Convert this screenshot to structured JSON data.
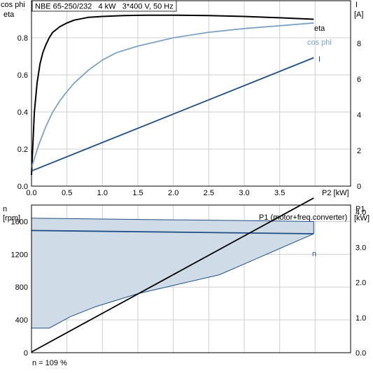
{
  "chart_data": [
    {
      "type": "line",
      "title": "NBE 65-250/232   4 kW   3*400 V, 50 Hz",
      "xlabel": "P2 [kW]",
      "ylabel_left": [
        "cos phi",
        "eta"
      ],
      "ylabel_right": [
        "I",
        "[A]"
      ],
      "xlim": [
        0,
        4.5
      ],
      "ylim_left": [
        0,
        1.0
      ],
      "ylim_right": [
        0,
        10.4
      ],
      "x_ticks": [
        "0.0",
        "0.5",
        "1.0",
        "1.5",
        "2.0",
        "2.5",
        "3.0",
        "3.5"
      ],
      "y_left_ticks": [
        "0.0",
        "0.2",
        "0.4",
        "0.6",
        "0.8"
      ],
      "y_right_ticks": [
        "0",
        "2",
        "4",
        "6",
        "8"
      ],
      "grid": true,
      "series": [
        {
          "name": "eta",
          "axis": "left",
          "color": "#000000",
          "x": [
            0,
            0.04,
            0.08,
            0.12,
            0.16,
            0.2,
            0.25,
            0.3,
            0.4,
            0.5,
            0.6,
            0.8,
            1.0,
            1.3,
            1.6,
            2.0,
            2.5,
            3.0,
            3.5,
            3.98
          ],
          "y": [
            0.06,
            0.4,
            0.56,
            0.66,
            0.72,
            0.76,
            0.8,
            0.83,
            0.86,
            0.88,
            0.895,
            0.91,
            0.915,
            0.92,
            0.922,
            0.922,
            0.92,
            0.915,
            0.908,
            0.9
          ]
        },
        {
          "name": "cos phi",
          "axis": "left",
          "color": "#7ba3c6",
          "x": [
            0,
            0.1,
            0.2,
            0.3,
            0.4,
            0.5,
            0.6,
            0.8,
            1.0,
            1.2,
            1.5,
            2.0,
            2.5,
            3.0,
            3.5,
            3.98
          ],
          "y": [
            0.1,
            0.22,
            0.32,
            0.4,
            0.46,
            0.51,
            0.555,
            0.625,
            0.68,
            0.72,
            0.755,
            0.8,
            0.83,
            0.85,
            0.865,
            0.88
          ]
        },
        {
          "name": "I",
          "axis": "right",
          "color": "#1f4e85",
          "x": [
            0,
            3.98
          ],
          "y": [
            0.85,
            7.2
          ]
        }
      ]
    },
    {
      "type": "area",
      "ylabel_left": [
        "n",
        "[rpm]"
      ],
      "ylabel_right": [
        "P1",
        "[kW]"
      ],
      "xlim": [
        0,
        4.5
      ],
      "ylim_left": [
        0,
        1800
      ],
      "ylim_right": [
        0,
        4.2
      ],
      "y_left_ticks": [
        "0",
        "400",
        "800",
        "1200",
        "1600"
      ],
      "y_right_ticks": [
        "0.0",
        "1.0",
        "2.0",
        "3.0",
        "4.0"
      ],
      "grid": true,
      "series": [
        {
          "name": "n",
          "axis": "left",
          "color": "#1f4e85",
          "x": [
            0,
            3.98
          ],
          "y": [
            1490,
            1450
          ]
        },
        {
          "name": "n (range)",
          "axis": "left",
          "color": "#1f4e85",
          "upper_x": [
            0,
            3.98
          ],
          "upper_y": [
            1640,
            1600
          ],
          "lower_x": [
            0,
            0.25,
            0.55,
            0.9,
            1.5,
            2.0,
            2.65,
            3.98
          ],
          "lower_y": [
            300,
            300,
            440,
            560,
            720,
            820,
            950,
            1450
          ]
        },
        {
          "name": "P1 (motor+freq.converter)",
          "axis": "right",
          "color": "#000000",
          "x": [
            0,
            3.98
          ],
          "y": [
            0.02,
            4.4
          ]
        }
      ],
      "annotation": "n = 109 %"
    }
  ]
}
